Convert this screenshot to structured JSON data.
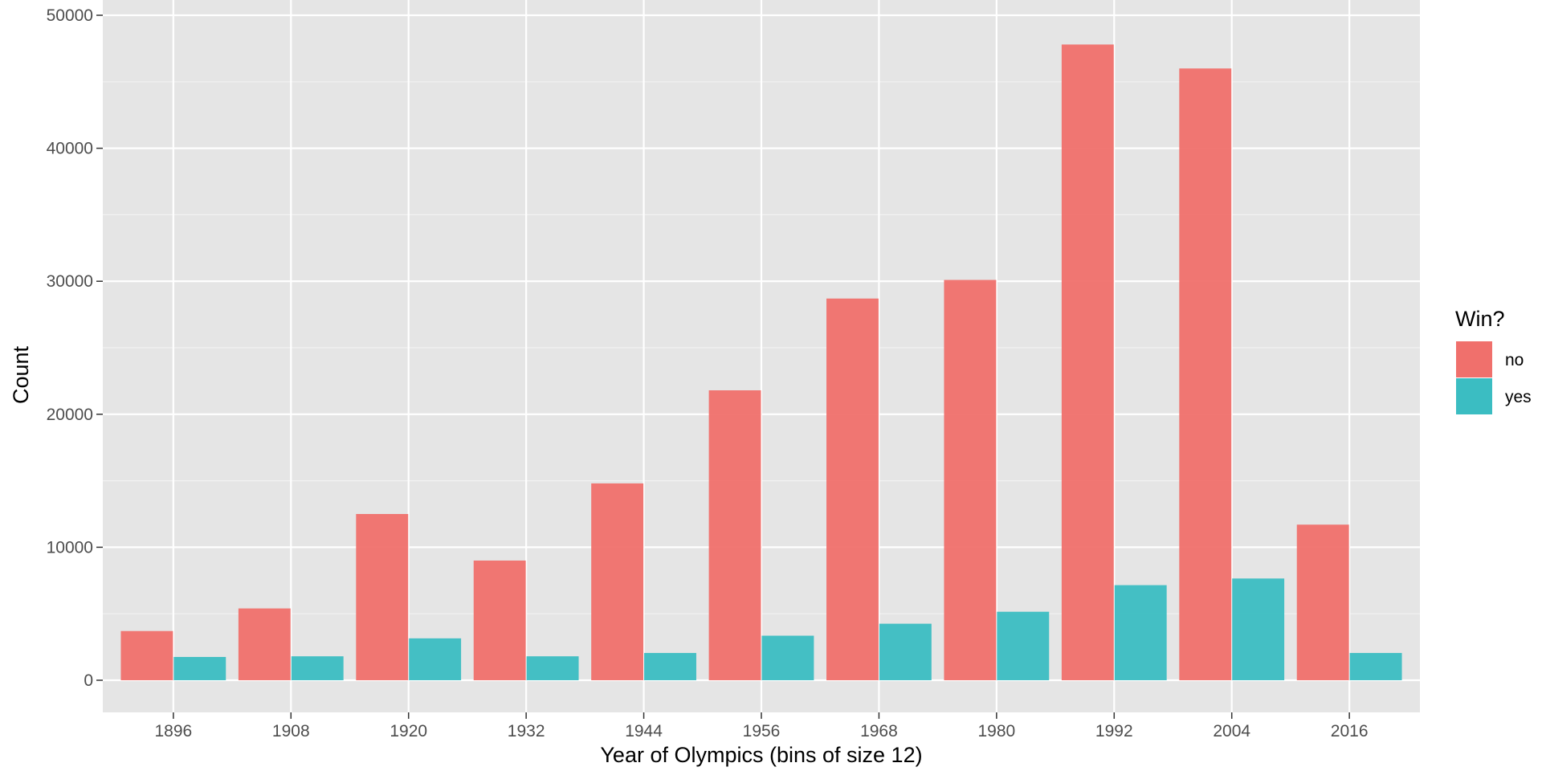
{
  "chart_data": {
    "type": "bar",
    "categories": [
      "1896",
      "1908",
      "1920",
      "1932",
      "1944",
      "1956",
      "1968",
      "1980",
      "1992",
      "2004",
      "2016"
    ],
    "series": [
      {
        "name": "no",
        "color": "#F0706C",
        "values": [
          3700,
          5400,
          12500,
          9000,
          14800,
          21800,
          28700,
          30100,
          47800,
          46000,
          11700
        ]
      },
      {
        "name": "yes",
        "color": "#3BBDC2",
        "values": [
          1750,
          1800,
          3150,
          1800,
          2050,
          3350,
          4250,
          5150,
          7150,
          7650,
          2050
        ]
      }
    ],
    "xlabel": "Year of Olympics (bins of size 12)",
    "ylabel": "Count",
    "ylim": [
      0,
      50000
    ],
    "yticks": [
      "0",
      "10000",
      "20000",
      "30000",
      "40000",
      "50000"
    ],
    "grid": true,
    "panel_background": "#E5E5E5",
    "legend": {
      "title": "Win?",
      "position": "right",
      "items": [
        "no",
        "yes"
      ]
    }
  }
}
